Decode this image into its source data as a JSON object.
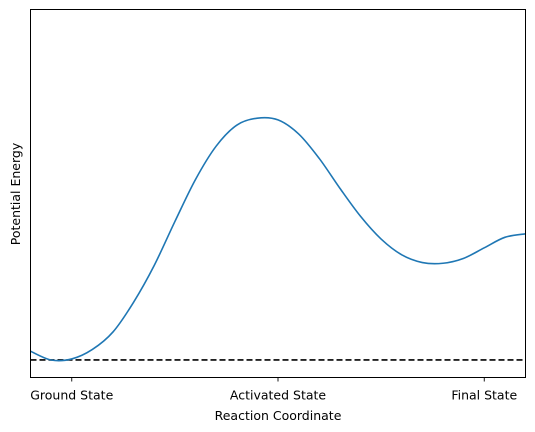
{
  "chart_data": {
    "type": "line",
    "title": "",
    "xlabel": "Reaction Coordinate",
    "ylabel": "Potential Energy",
    "xlim": [
      -0.1,
      1.1
    ],
    "ylim": [
      -0.05,
      1.0
    ],
    "grid": false,
    "legend": "none",
    "x_ticks": [
      {
        "value": 0,
        "label": "Ground State"
      },
      {
        "value": 0.5,
        "label": "Activated State"
      },
      {
        "value": 1,
        "label": "Final State"
      }
    ],
    "y_ticks": [],
    "series": [
      {
        "name": "",
        "color": "#1f77b4",
        "x": [
          -0.1,
          -0.05,
          0.0,
          0.05,
          0.1,
          0.15,
          0.2,
          0.25,
          0.3,
          0.35,
          0.4,
          0.45,
          0.5,
          0.55,
          0.6,
          0.65,
          0.7,
          0.75,
          0.8,
          0.85,
          0.9,
          0.95,
          1.0,
          1.05,
          1.1
        ],
        "y": [
          0.025,
          0.0,
          0.003,
          0.03,
          0.08,
          0.165,
          0.27,
          0.395,
          0.515,
          0.61,
          0.67,
          0.69,
          0.685,
          0.645,
          0.575,
          0.49,
          0.41,
          0.345,
          0.3,
          0.278,
          0.276,
          0.29,
          0.32,
          0.35,
          0.36
        ]
      }
    ],
    "reference_lines": [
      {
        "orientation": "horizontal",
        "y": 0,
        "style": "dashed",
        "color": "#000000"
      }
    ]
  }
}
